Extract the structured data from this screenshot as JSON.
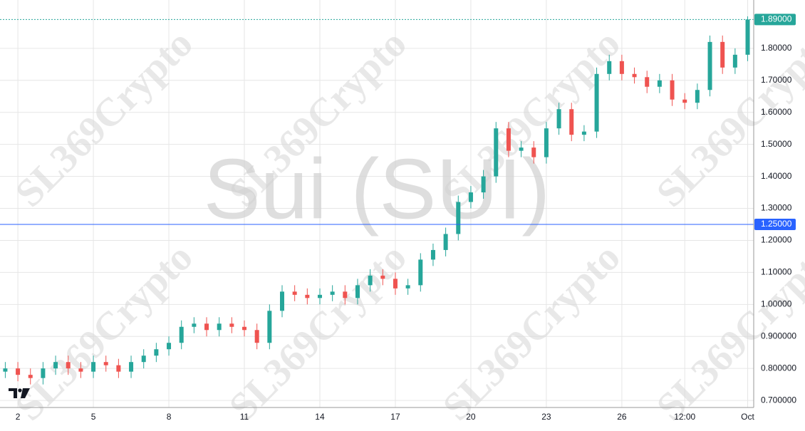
{
  "chart_data": {
    "type": "candlestick",
    "title": "Sui (SUI)",
    "watermark": "SL369Crypto",
    "up_color": "#26a69a",
    "down_color": "#ef5350",
    "grid": true,
    "x": [
      1.5,
      2,
      2.5,
      3,
      3.5,
      4,
      4.5,
      5,
      5.5,
      6,
      6.5,
      7,
      7.5,
      8,
      8.5,
      9,
      9.5,
      10,
      10.5,
      11,
      11.5,
      12,
      12.5,
      13,
      13.5,
      14,
      14.5,
      15,
      15.5,
      16,
      16.5,
      17,
      17.5,
      18,
      18.5,
      19,
      19.5,
      20,
      20.5,
      21,
      21.5,
      22,
      22.5,
      23,
      23.5,
      24,
      24.5,
      25,
      25.5,
      26,
      26.5,
      27,
      27.5,
      28,
      28.5,
      29,
      29.5,
      30,
      30.5,
      31
    ],
    "open": [
      0.79,
      0.8,
      0.78,
      0.77,
      0.8,
      0.82,
      0.8,
      0.79,
      0.82,
      0.81,
      0.79,
      0.82,
      0.84,
      0.86,
      0.88,
      0.93,
      0.94,
      0.92,
      0.94,
      0.93,
      0.92,
      0.88,
      0.98,
      1.04,
      1.03,
      1.02,
      1.03,
      1.04,
      1.02,
      1.06,
      1.09,
      1.08,
      1.05,
      1.06,
      1.14,
      1.17,
      1.22,
      1.32,
      1.35,
      1.4,
      1.55,
      1.48,
      1.49,
      1.46,
      1.55,
      1.61,
      1.53,
      1.54,
      1.72,
      1.76,
      1.72,
      1.71,
      1.68,
      1.7,
      1.64,
      1.63,
      1.67,
      1.82,
      1.74,
      1.78
    ],
    "high": [
      0.82,
      0.82,
      0.8,
      0.82,
      0.84,
      0.84,
      0.82,
      0.84,
      0.84,
      0.83,
      0.84,
      0.86,
      0.88,
      0.9,
      0.95,
      0.96,
      0.96,
      0.96,
      0.96,
      0.95,
      0.94,
      1.0,
      1.06,
      1.06,
      1.05,
      1.05,
      1.06,
      1.06,
      1.08,
      1.11,
      1.11,
      1.1,
      1.08,
      1.16,
      1.19,
      1.24,
      1.34,
      1.37,
      1.42,
      1.57,
      1.57,
      1.51,
      1.51,
      1.57,
      1.63,
      1.63,
      1.56,
      1.74,
      1.78,
      1.78,
      1.74,
      1.73,
      1.72,
      1.72,
      1.66,
      1.69,
      1.84,
      1.84,
      1.8,
      1.9
    ],
    "low": [
      0.77,
      0.76,
      0.75,
      0.75,
      0.78,
      0.78,
      0.77,
      0.77,
      0.79,
      0.77,
      0.77,
      0.8,
      0.82,
      0.84,
      0.86,
      0.91,
      0.9,
      0.9,
      0.91,
      0.9,
      0.86,
      0.86,
      0.96,
      1.01,
      1.0,
      1.0,
      1.01,
      1.0,
      1.0,
      1.04,
      1.06,
      1.03,
      1.03,
      1.04,
      1.12,
      1.15,
      1.2,
      1.3,
      1.33,
      1.38,
      1.46,
      1.46,
      1.44,
      1.44,
      1.53,
      1.51,
      1.51,
      1.52,
      1.7,
      1.7,
      1.69,
      1.66,
      1.66,
      1.62,
      1.61,
      1.61,
      1.65,
      1.72,
      1.72,
      1.76
    ],
    "close": [
      0.8,
      0.78,
      0.77,
      0.8,
      0.82,
      0.8,
      0.79,
      0.82,
      0.81,
      0.79,
      0.82,
      0.84,
      0.86,
      0.88,
      0.93,
      0.94,
      0.92,
      0.94,
      0.93,
      0.92,
      0.88,
      0.98,
      1.04,
      1.03,
      1.02,
      1.03,
      1.04,
      1.02,
      1.06,
      1.09,
      1.08,
      1.05,
      1.06,
      1.14,
      1.17,
      1.22,
      1.32,
      1.35,
      1.4,
      1.55,
      1.48,
      1.49,
      1.46,
      1.55,
      1.61,
      1.53,
      1.54,
      1.72,
      1.76,
      1.72,
      1.71,
      1.68,
      1.7,
      1.64,
      1.63,
      1.67,
      1.82,
      1.74,
      1.78,
      1.89
    ],
    "xlim": [
      1.29,
      31.24
    ],
    "xticks": [
      {
        "value": 2,
        "label": "2"
      },
      {
        "value": 5,
        "label": "5"
      },
      {
        "value": 8,
        "label": "8"
      },
      {
        "value": 11,
        "label": "11"
      },
      {
        "value": 14,
        "label": "14"
      },
      {
        "value": 17,
        "label": "17"
      },
      {
        "value": 20,
        "label": "20"
      },
      {
        "value": 23,
        "label": "23"
      },
      {
        "value": 26,
        "label": "26"
      },
      {
        "value": 28.5,
        "label": "12:00"
      },
      {
        "value": 31,
        "label": "Oct"
      }
    ],
    "ylim": [
      0.678,
      1.951
    ],
    "yticks": [
      {
        "value": 0.7,
        "label": "0.700000"
      },
      {
        "value": 0.8,
        "label": "0.800000"
      },
      {
        "value": 0.9,
        "label": "0.900000"
      },
      {
        "value": 1.0,
        "label": "1.00000"
      },
      {
        "value": 1.1,
        "label": "1.10000"
      },
      {
        "value": 1.2,
        "label": "1.20000"
      },
      {
        "value": 1.3,
        "label": "1.30000"
      },
      {
        "value": 1.4,
        "label": "1.40000"
      },
      {
        "value": 1.5,
        "label": "1.50000"
      },
      {
        "value": 1.6,
        "label": "1.60000"
      },
      {
        "value": 1.7,
        "label": "1.70000"
      },
      {
        "value": 1.8,
        "label": "1.80000"
      }
    ],
    "last_price": {
      "value": 1.89,
      "label": "1.89000",
      "color": "#26a69a"
    },
    "price_line": {
      "value": 1.25,
      "label": "1.25000",
      "color": "#2962ff"
    }
  }
}
